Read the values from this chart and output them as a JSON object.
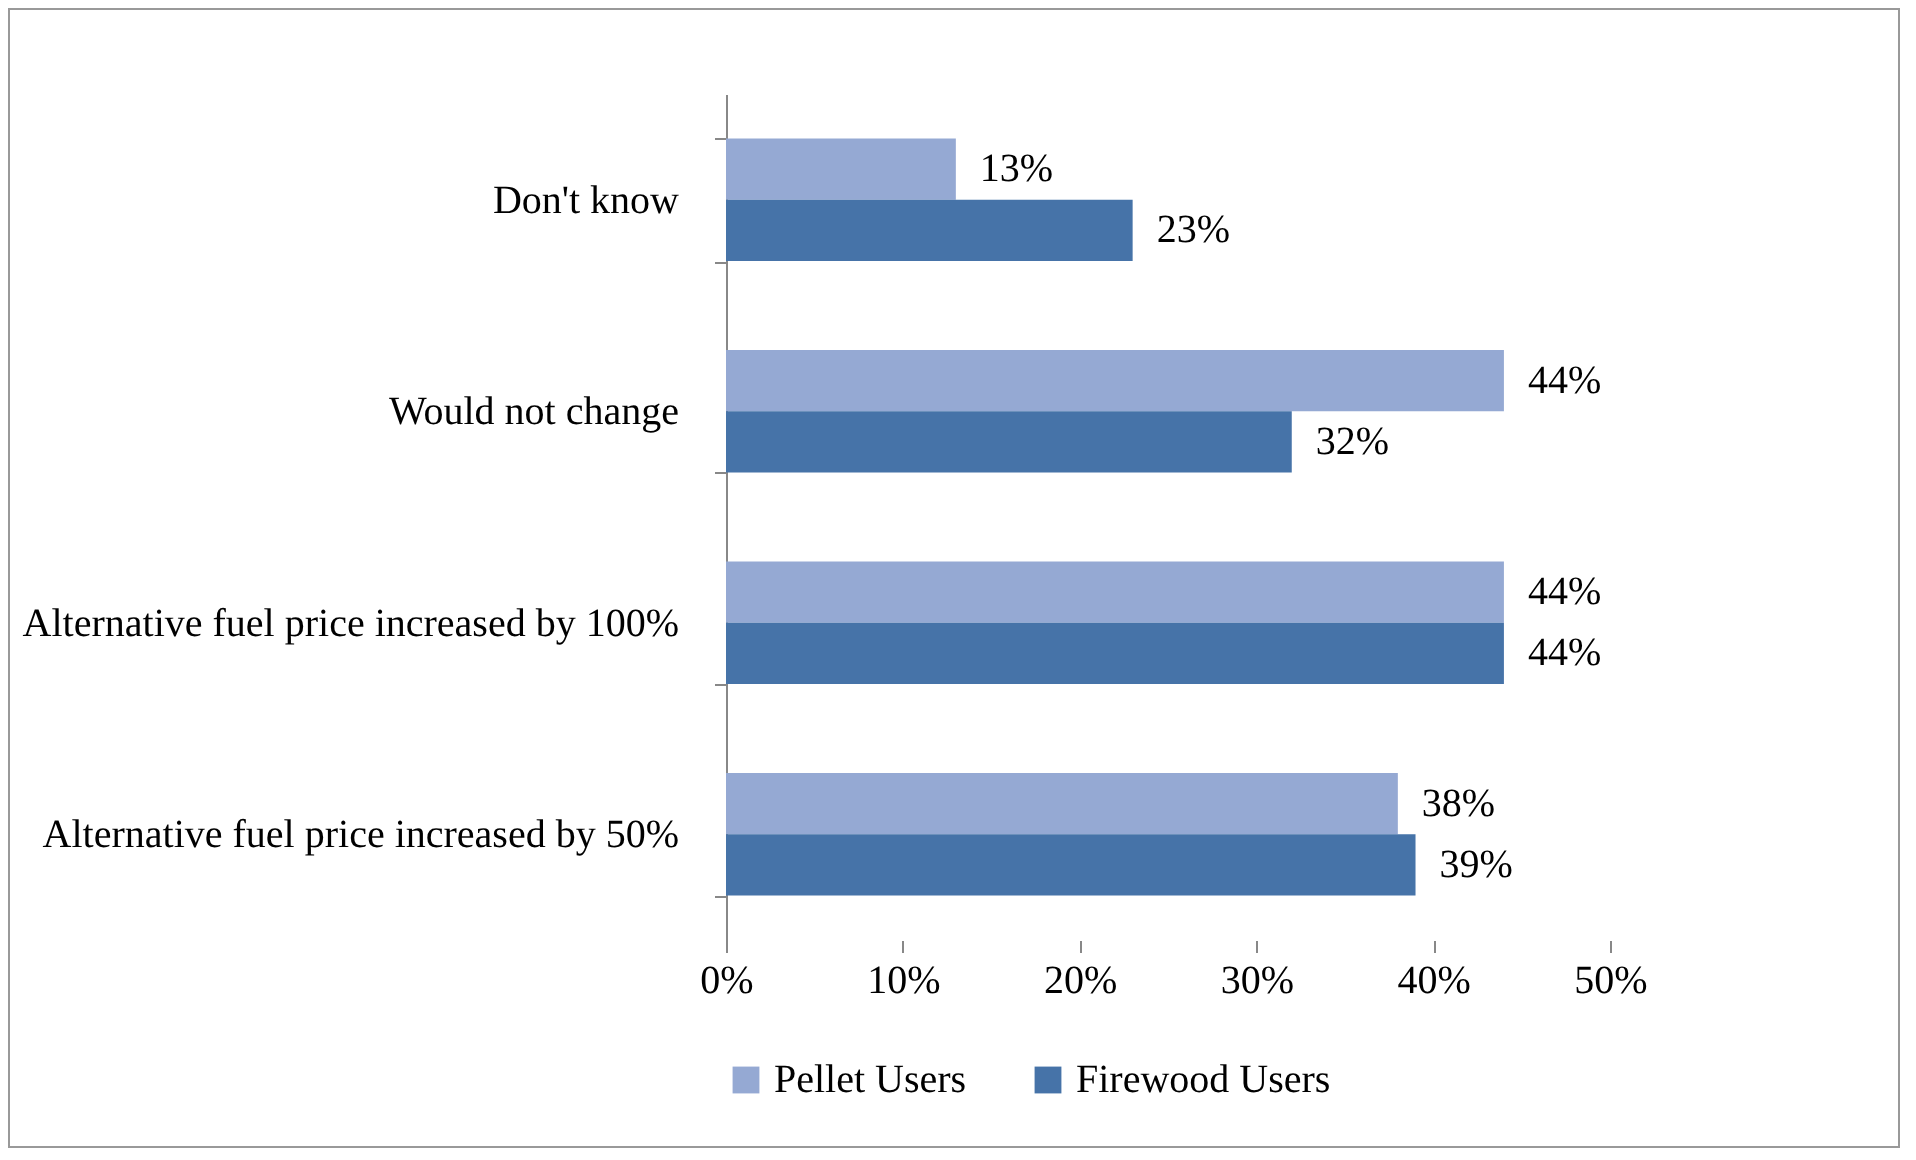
{
  "chart_data": {
    "type": "bar",
    "orientation": "horizontal",
    "categories": [
      "Don't know",
      "Would not change",
      "Alternative fuel price increased by 100%",
      "Alternative fuel price increased by 50%"
    ],
    "series": [
      {
        "name": "Pellet Users",
        "color": "#95a9d3",
        "values": [
          13,
          44,
          44,
          38
        ],
        "value_labels": [
          "13%",
          "44%",
          "44%",
          "38%"
        ]
      },
      {
        "name": "Firewood Users",
        "color": "#4673a8",
        "values": [
          23,
          32,
          44,
          39
        ],
        "value_labels": [
          "23%",
          "32%",
          "44%",
          "39%"
        ]
      }
    ],
    "xlim": [
      0,
      50
    ],
    "xticks": [
      {
        "value": 0,
        "label": "0%"
      },
      {
        "value": 10,
        "label": "10%"
      },
      {
        "value": 20,
        "label": "20%"
      },
      {
        "value": 30,
        "label": "30%"
      },
      {
        "value": 40,
        "label": "40%"
      },
      {
        "value": 50,
        "label": "50%"
      }
    ],
    "grid": false,
    "legend": "bottom"
  }
}
